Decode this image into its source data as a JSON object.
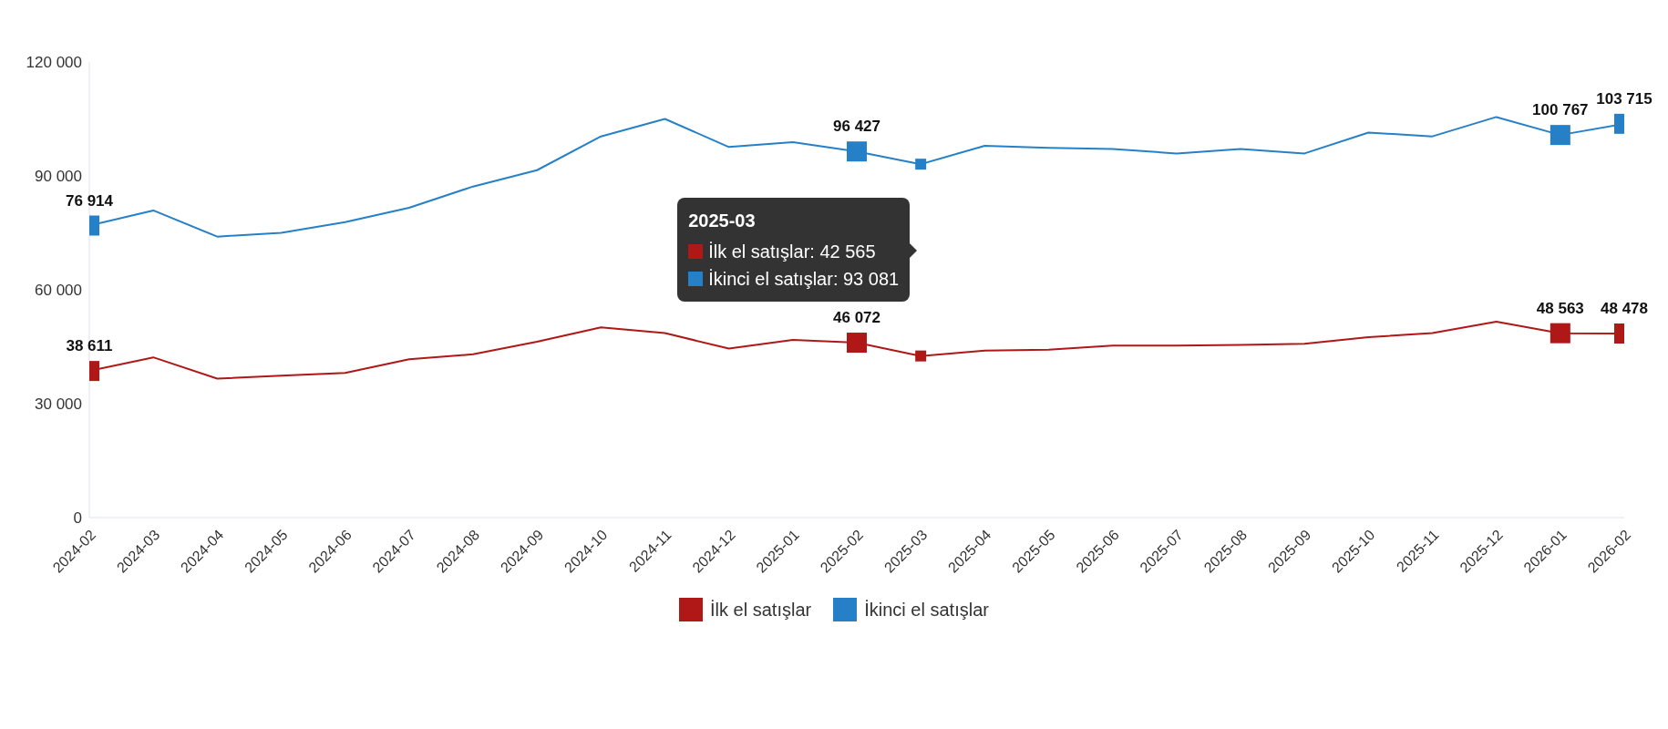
{
  "chart_data": {
    "type": "line",
    "categories": [
      "2024-02",
      "2024-03",
      "2024-04",
      "2024-05",
      "2024-06",
      "2024-07",
      "2024-08",
      "2024-09",
      "2024-10",
      "2024-11",
      "2024-12",
      "2025-01",
      "2025-02",
      "2025-03",
      "2025-04",
      "2025-05",
      "2025-06",
      "2025-07",
      "2025-08",
      "2025-09",
      "2025-10",
      "2025-11",
      "2025-12",
      "2026-01",
      "2026-02"
    ],
    "series": [
      {
        "name": "İlk el satışlar",
        "color": "#b01818",
        "values": [
          38611,
          42200,
          36600,
          37400,
          38100,
          41700,
          43000,
          46300,
          50100,
          48600,
          44500,
          46800,
          46072,
          42565,
          44000,
          44200,
          45300,
          45300,
          45500,
          45800,
          47500,
          48600,
          51600,
          48563,
          48478
        ],
        "value_labels": [
          "38 611",
          null,
          null,
          null,
          null,
          null,
          null,
          null,
          null,
          null,
          null,
          null,
          "46 072",
          null,
          null,
          null,
          null,
          null,
          null,
          null,
          null,
          null,
          null,
          "48 563",
          "48 478"
        ]
      },
      {
        "name": "İkinci el satışlar",
        "color": "#2680c8",
        "values": [
          76914,
          80900,
          74000,
          75000,
          77800,
          81600,
          87200,
          91500,
          100400,
          105000,
          97600,
          98900,
          96427,
          93081,
          97900,
          97400,
          97100,
          95900,
          97100,
          95900,
          101400,
          100400,
          105500,
          100767,
          103715
        ],
        "value_labels": [
          "76 914",
          null,
          null,
          null,
          null,
          null,
          null,
          null,
          null,
          null,
          null,
          null,
          "96 427",
          null,
          null,
          null,
          null,
          null,
          null,
          null,
          null,
          null,
          null,
          "100 767",
          "103 715"
        ]
      }
    ],
    "ylim": [
      0,
      120000
    ],
    "yticks": [
      {
        "value": 0,
        "label": "0"
      },
      {
        "value": 30000,
        "label": "30 000"
      },
      {
        "value": 60000,
        "label": "60 000"
      },
      {
        "value": 90000,
        "label": "90 000"
      },
      {
        "value": 120000,
        "label": "120 000"
      }
    ],
    "grid": false,
    "legend": "bottom",
    "annotations": [
      "2025-03",
      "İlk el satışlar: 42 565",
      "İkinci el satışlar: 93 081"
    ]
  }
}
